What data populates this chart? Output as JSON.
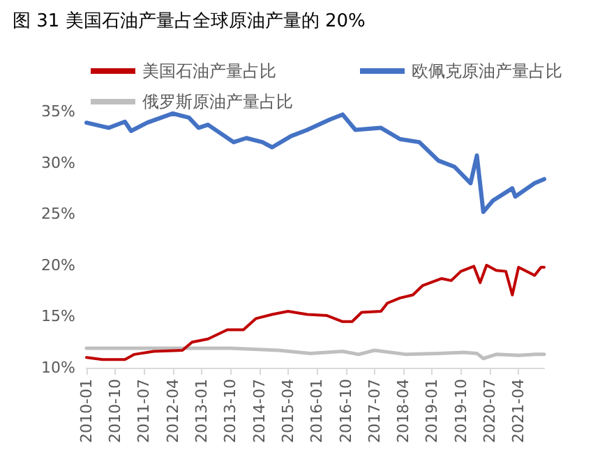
{
  "chart_data": {
    "type": "line",
    "title": "图 31 美国石油产量占全球原油产量的 20%",
    "xlim": [
      "2010-01",
      "2021-12"
    ],
    "xticks": [
      "2010-01",
      "2010-10",
      "2011-07",
      "2012-04",
      "2013-01",
      "2013-10",
      "2014-07",
      "2015-04",
      "2016-01",
      "2016-10",
      "2017-07",
      "2018-04",
      "2019-01",
      "2019-10",
      "2020-07",
      "2021-04"
    ],
    "ylim": [
      10,
      35
    ],
    "yticks": [
      {
        "value": 10,
        "label": "10%"
      },
      {
        "value": 15,
        "label": "15%"
      },
      {
        "value": 20,
        "label": "20%"
      },
      {
        "value": 25,
        "label": "25%"
      },
      {
        "value": 30,
        "label": "30%"
      },
      {
        "value": 35,
        "label": "35%"
      }
    ],
    "grid": false,
    "legend": "top",
    "marker": "none",
    "line_style": "solid",
    "series": [
      {
        "name": "美国石油产量占比",
        "color": "#c00000",
        "x": [
          "2010-01",
          "2010-06",
          "2011-01",
          "2011-04",
          "2011-10",
          "2012-07",
          "2012-10",
          "2013-03",
          "2013-09",
          "2014-02",
          "2014-06",
          "2014-11",
          "2015-04",
          "2015-10",
          "2016-04",
          "2016-09",
          "2016-12",
          "2017-03",
          "2017-09",
          "2017-11",
          "2018-03",
          "2018-07",
          "2018-10",
          "2019-04",
          "2019-07",
          "2019-10",
          "2020-02",
          "2020-04",
          "2020-06",
          "2020-09",
          "2020-12",
          "2021-02",
          "2021-04",
          "2021-09",
          "2021-11",
          "2021-12"
        ],
        "values": [
          11.0,
          10.8,
          10.8,
          11.3,
          11.6,
          11.7,
          12.5,
          12.8,
          13.7,
          13.7,
          14.8,
          15.2,
          15.5,
          15.2,
          15.1,
          14.5,
          14.5,
          15.4,
          15.5,
          16.3,
          16.8,
          17.1,
          18.0,
          18.7,
          18.5,
          19.4,
          19.9,
          18.3,
          20.0,
          19.5,
          19.4,
          17.1,
          19.8,
          19.0,
          19.8,
          19.8
        ]
      },
      {
        "name": "欧佩克原油产量占比",
        "color": "#4472c4",
        "x": [
          "2010-01",
          "2010-08",
          "2011-01",
          "2011-03",
          "2011-08",
          "2012-04",
          "2012-09",
          "2012-12",
          "2013-03",
          "2013-11",
          "2014-03",
          "2014-08",
          "2014-11",
          "2015-05",
          "2015-10",
          "2016-05",
          "2016-09",
          "2017-01",
          "2017-09",
          "2018-03",
          "2018-09",
          "2019-03",
          "2019-08",
          "2020-01",
          "2020-03",
          "2020-05",
          "2020-08",
          "2021-02",
          "2021-03",
          "2021-09",
          "2021-12"
        ],
        "values": [
          33.9,
          33.4,
          34.0,
          33.1,
          33.9,
          34.8,
          34.4,
          33.4,
          33.7,
          32.0,
          32.4,
          32.0,
          31.5,
          32.6,
          33.2,
          34.2,
          34.7,
          33.2,
          33.4,
          32.3,
          32.0,
          30.2,
          29.6,
          28.0,
          30.7,
          25.2,
          26.3,
          27.5,
          26.7,
          28.0,
          28.4
        ]
      },
      {
        "name": "俄罗斯原油产量占比",
        "color": "#bfbfbf",
        "x": [
          "2010-01",
          "2011-04",
          "2012-07",
          "2013-10",
          "2015-01",
          "2015-11",
          "2016-09",
          "2017-02",
          "2017-07",
          "2018-05",
          "2019-03",
          "2019-11",
          "2020-03",
          "2020-05",
          "2020-09",
          "2021-04",
          "2021-09",
          "2021-12"
        ],
        "values": [
          11.9,
          11.9,
          11.9,
          11.9,
          11.7,
          11.4,
          11.6,
          11.3,
          11.7,
          11.3,
          11.4,
          11.5,
          11.4,
          10.9,
          11.3,
          11.2,
          11.3,
          11.3
        ]
      }
    ]
  }
}
